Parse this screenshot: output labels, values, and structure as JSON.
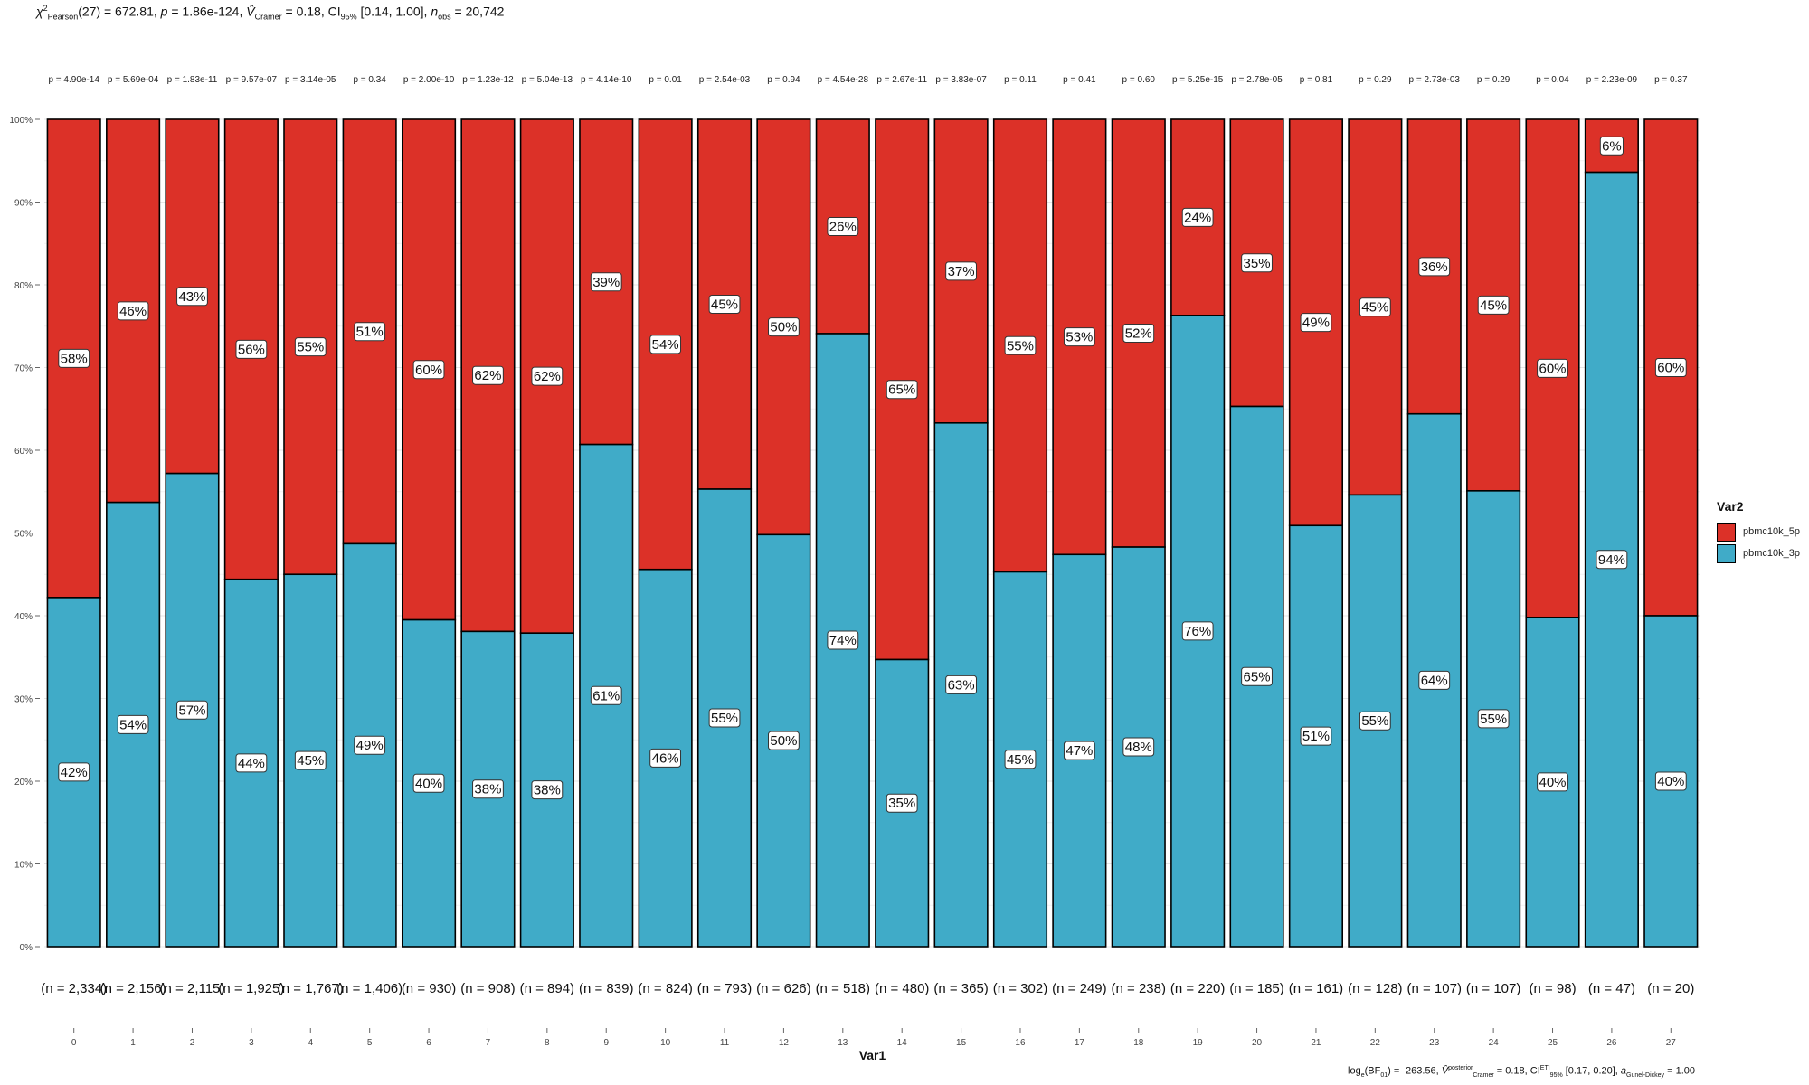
{
  "subtitle": {
    "chi": "χ",
    "chi_sup": "2",
    "chi_sub": "Pearson",
    "df": "(27) = 672.81, ",
    "p": "p",
    "p_val": " = 1.86e-124, ",
    "v": "V̂",
    "v_sub": "Cramer",
    "v_val": " = 0.18, CI",
    "ci_sub": "95%",
    "ci_val": " [0.14, 1.00], ",
    "n": "n",
    "n_sub": "obs",
    "n_val": " = 20,742"
  },
  "caption": {
    "log": "log",
    "log_sub": "e",
    "bf": "(BF",
    "bf_sub": "01",
    "bf_val": ") = -263.56, ",
    "v": "V̂",
    "v_sup": "posterior",
    "v_sub": "Cramer",
    "v_val": " = 0.18, CI",
    "ci_sup": "ETI",
    "ci_sub": "95%",
    "ci_val": " [0.17, 0.20], ",
    "a": "a",
    "a_sub": "Gunel-Dickey",
    "a_val": " = 1.00"
  },
  "legend": {
    "title": "Var2",
    "items": [
      {
        "label": "pbmc10k_5p",
        "color": "#DC3128"
      },
      {
        "label": "pbmc10k_3p",
        "color": "#40ABC8"
      }
    ]
  },
  "chart_data": {
    "type": "bar",
    "stacked": "percent",
    "xlabel": "Var1",
    "ylabel": "",
    "ylim": [
      0,
      100
    ],
    "y_ticks": [
      "0%",
      "10%",
      "20%",
      "30%",
      "40%",
      "50%",
      "60%",
      "70%",
      "80%",
      "90%",
      "100%"
    ],
    "categories": [
      "0",
      "1",
      "2",
      "3",
      "4",
      "5",
      "6",
      "7",
      "8",
      "9",
      "10",
      "11",
      "12",
      "13",
      "14",
      "15",
      "16",
      "17",
      "18",
      "19",
      "20",
      "21",
      "22",
      "23",
      "24",
      "25",
      "26",
      "27"
    ],
    "series": [
      {
        "name": "pbmc10k_3p",
        "color": "#40ABC8",
        "values": [
          42.2,
          53.7,
          57.2,
          44.4,
          45.0,
          48.7,
          39.5,
          38.1,
          37.9,
          60.7,
          45.6,
          55.3,
          49.8,
          74.1,
          34.7,
          63.3,
          45.3,
          47.4,
          48.3,
          76.3,
          65.3,
          50.9,
          54.6,
          64.4,
          55.1,
          39.8,
          93.6,
          40.0
        ],
        "labels": [
          "42%",
          "54%",
          "57%",
          "44%",
          "45%",
          "49%",
          "40%",
          "38%",
          "38%",
          "61%",
          "46%",
          "55%",
          "50%",
          "74%",
          "35%",
          "63%",
          "45%",
          "47%",
          "48%",
          "76%",
          "65%",
          "51%",
          "55%",
          "64%",
          "55%",
          "40%",
          "94%",
          "40%"
        ]
      },
      {
        "name": "pbmc10k_5p",
        "color": "#DC3128",
        "values": [
          57.8,
          46.3,
          42.8,
          55.6,
          55.0,
          51.3,
          60.5,
          61.9,
          62.1,
          39.3,
          54.4,
          44.7,
          50.2,
          25.9,
          65.3,
          36.7,
          54.7,
          52.6,
          51.7,
          23.7,
          34.7,
          49.1,
          45.4,
          35.6,
          44.9,
          60.2,
          6.4,
          60.0
        ],
        "labels": [
          "58%",
          "46%",
          "43%",
          "56%",
          "55%",
          "51%",
          "60%",
          "62%",
          "62%",
          "39%",
          "54%",
          "45%",
          "50%",
          "26%",
          "65%",
          "37%",
          "55%",
          "53%",
          "52%",
          "24%",
          "35%",
          "49%",
          "45%",
          "36%",
          "45%",
          "60%",
          "6%",
          "60%"
        ]
      }
    ],
    "p_values": [
      "p = 4.90e-14",
      "p = 5.69e-04",
      "p = 1.83e-11",
      "p = 9.57e-07",
      "p = 3.14e-05",
      "p = 0.34",
      "p = 2.00e-10",
      "p = 1.23e-12",
      "p = 5.04e-13",
      "p = 4.14e-10",
      "p = 0.01",
      "p = 2.54e-03",
      "p = 0.94",
      "p = 4.54e-28",
      "p = 2.67e-11",
      "p = 3.83e-07",
      "p = 0.11",
      "p = 0.41",
      "p = 0.60",
      "p = 5.25e-15",
      "p = 2.78e-05",
      "p = 0.81",
      "p = 0.29",
      "p = 2.73e-03",
      "p = 0.29",
      "p = 0.04",
      "p = 2.23e-09",
      "p = 0.37"
    ],
    "counts": [
      "(n = 2,334)",
      "(n = 2,156)",
      "(n = 2,115)",
      "(n = 1,925)",
      "(n = 1,767)",
      "(n = 1,406)",
      "(n = 930)",
      "(n = 908)",
      "(n = 894)",
      "(n = 839)",
      "(n = 824)",
      "(n = 793)",
      "(n = 626)",
      "(n = 518)",
      "(n = 480)",
      "(n = 365)",
      "(n = 302)",
      "(n = 249)",
      "(n = 238)",
      "(n = 220)",
      "(n = 185)",
      "(n = 161)",
      "(n = 128)",
      "(n = 107)",
      "(n = 107)",
      "(n = 98)",
      "(n = 47)",
      "(n = 20)"
    ],
    "grid": true,
    "legend_position": "right"
  }
}
